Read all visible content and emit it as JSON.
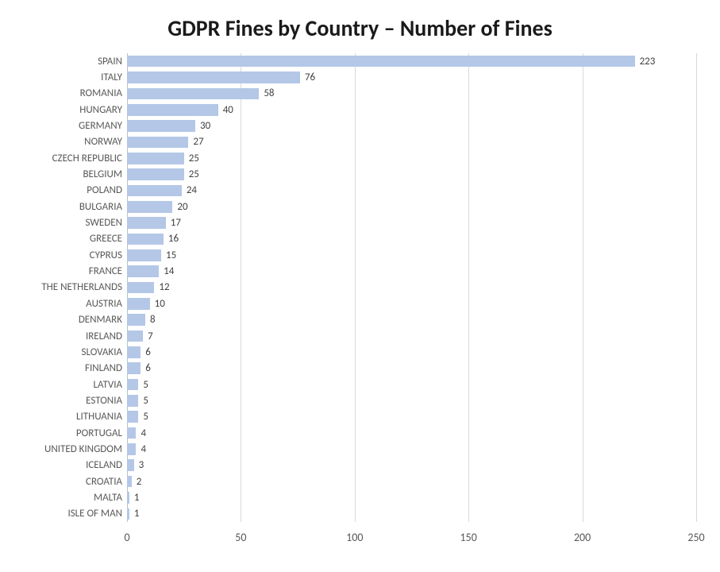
{
  "chart": {
    "type": "horizontal-bar",
    "title": "GDPR Fines by Country – Number of Fines",
    "title_fontsize": 28,
    "title_fontweight": "bold",
    "title_color": "#1a1a1a",
    "background_color": "#ffffff",
    "bar_color": "#b4c7e7",
    "grid_color": "#d9d9d9",
    "axis_line_color": "#bfbfbf",
    "label_color": "#595959",
    "value_label_color": "#404040",
    "label_fontsize": 13,
    "xaxis_label_fontsize": 14,
    "xlim": [
      0,
      250
    ],
    "xtick_step": 50,
    "xticks": [
      0,
      50,
      100,
      150,
      200,
      250
    ],
    "bar_gap_ratio": 0.28,
    "categories": [
      "SPAIN",
      "ITALY",
      "ROMANIA",
      "HUNGARY",
      "GERMANY",
      "NORWAY",
      "CZECH REPUBLIC",
      "BELGIUM",
      "POLAND",
      "BULGARIA",
      "SWEDEN",
      "GREECE",
      "CYPRUS",
      "FRANCE",
      "THE NETHERLANDS",
      "AUSTRIA",
      "DENMARK",
      "IRELAND",
      "SLOVAKIA",
      "FINLAND",
      "LATVIA",
      "ESTONIA",
      "LITHUANIA",
      "PORTUGAL",
      "UNITED KINGDOM",
      "ICELAND",
      "CROATIA",
      "MALTA",
      "ISLE OF MAN"
    ],
    "values": [
      223,
      76,
      58,
      40,
      30,
      27,
      25,
      25,
      24,
      20,
      17,
      16,
      15,
      14,
      12,
      10,
      8,
      7,
      6,
      6,
      5,
      5,
      5,
      4,
      4,
      3,
      2,
      1,
      1
    ]
  }
}
